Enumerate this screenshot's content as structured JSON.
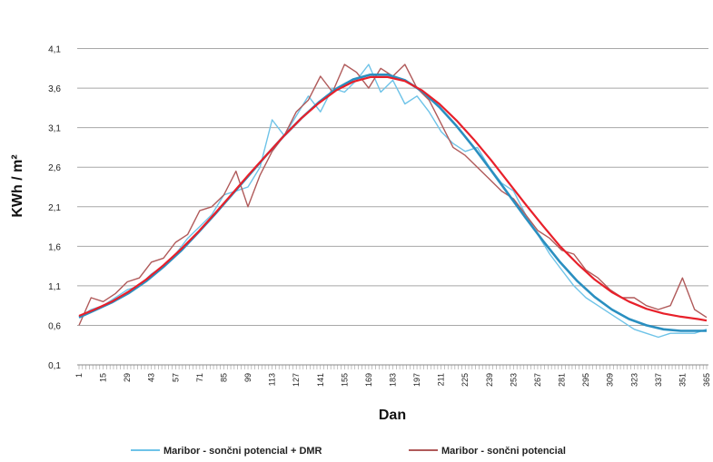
{
  "chart_data": {
    "type": "line",
    "xlabel": "Dan",
    "ylabel": "KWh / m²",
    "xlim": [
      1,
      365
    ],
    "ylim": [
      0.1,
      4.6
    ],
    "y_ticks": [
      0.1,
      0.6,
      1.1,
      1.6,
      2.1,
      2.6,
      3.1,
      3.6,
      4.1
    ],
    "y_tick_labels": [
      "0,1",
      "0,6",
      "1,1",
      "1,6",
      "2,1",
      "2,6",
      "3,1",
      "3,6",
      "4,1"
    ],
    "x_ticks": [
      1,
      15,
      29,
      43,
      57,
      71,
      85,
      99,
      113,
      127,
      141,
      155,
      169,
      183,
      197,
      211,
      225,
      239,
      253,
      267,
      281,
      295,
      309,
      323,
      337,
      351,
      365
    ],
    "grid": true,
    "legend_position": "bottom",
    "series": [
      {
        "name": "Maribor - sončni potencial + DMR",
        "color": "#6ec3e8",
        "x": [
          1,
          8,
          15,
          22,
          29,
          36,
          43,
          50,
          57,
          64,
          71,
          78,
          85,
          92,
          99,
          106,
          113,
          120,
          127,
          134,
          141,
          148,
          155,
          162,
          169,
          176,
          183,
          190,
          197,
          204,
          211,
          218,
          225,
          232,
          239,
          246,
          253,
          260,
          267,
          274,
          281,
          288,
          295,
          302,
          309,
          316,
          323,
          330,
          337,
          344,
          351,
          358,
          365
        ],
        "values": [
          0.7,
          0.8,
          0.85,
          0.95,
          1.05,
          1.1,
          1.25,
          1.35,
          1.5,
          1.7,
          1.85,
          2.0,
          2.25,
          2.3,
          2.35,
          2.6,
          3.2,
          3.0,
          3.25,
          3.5,
          3.3,
          3.6,
          3.55,
          3.7,
          3.9,
          3.55,
          3.7,
          3.4,
          3.5,
          3.3,
          3.05,
          2.9,
          2.8,
          2.85,
          2.6,
          2.4,
          2.3,
          2.0,
          1.75,
          1.5,
          1.3,
          1.1,
          0.95,
          0.85,
          0.75,
          0.65,
          0.55,
          0.5,
          0.45,
          0.5,
          0.5,
          0.5,
          0.55
        ]
      },
      {
        "name": "Maribor - sončni potencial",
        "color": "#b05a5a",
        "x": [
          1,
          8,
          15,
          22,
          29,
          36,
          43,
          50,
          57,
          64,
          71,
          78,
          85,
          92,
          99,
          106,
          113,
          120,
          127,
          134,
          141,
          148,
          155,
          162,
          169,
          176,
          183,
          190,
          197,
          204,
          211,
          218,
          225,
          232,
          239,
          246,
          253,
          260,
          267,
          274,
          281,
          288,
          295,
          302,
          309,
          316,
          323,
          330,
          337,
          344,
          351,
          358,
          365
        ],
        "values": [
          0.6,
          0.95,
          0.9,
          1.0,
          1.15,
          1.2,
          1.4,
          1.45,
          1.65,
          1.75,
          2.05,
          2.1,
          2.25,
          2.55,
          2.1,
          2.5,
          2.8,
          3.0,
          3.3,
          3.45,
          3.75,
          3.55,
          3.9,
          3.8,
          3.6,
          3.85,
          3.75,
          3.9,
          3.6,
          3.45,
          3.15,
          2.85,
          2.75,
          2.6,
          2.45,
          2.3,
          2.2,
          2.0,
          1.8,
          1.7,
          1.55,
          1.5,
          1.3,
          1.2,
          1.05,
          0.95,
          0.95,
          0.85,
          0.8,
          0.85,
          1.2,
          0.8,
          0.7
        ]
      },
      {
        "name": "",
        "color": "#2a8fc0",
        "x": [
          1,
          10,
          20,
          30,
          40,
          50,
          60,
          70,
          80,
          90,
          100,
          110,
          120,
          130,
          140,
          150,
          160,
          170,
          180,
          190,
          200,
          210,
          220,
          230,
          240,
          250,
          260,
          270,
          280,
          290,
          300,
          310,
          320,
          330,
          340,
          350,
          360,
          365
        ],
        "values": [
          0.7,
          0.79,
          0.89,
          1.01,
          1.16,
          1.34,
          1.54,
          1.77,
          2.01,
          2.26,
          2.51,
          2.76,
          3.0,
          3.22,
          3.42,
          3.59,
          3.71,
          3.77,
          3.77,
          3.7,
          3.56,
          3.36,
          3.12,
          2.85,
          2.56,
          2.26,
          1.96,
          1.67,
          1.4,
          1.16,
          0.96,
          0.8,
          0.68,
          0.6,
          0.55,
          0.53,
          0.53,
          0.53
        ]
      },
      {
        "name": "",
        "color": "#e8202a",
        "x": [
          1,
          10,
          20,
          30,
          40,
          50,
          60,
          70,
          80,
          90,
          100,
          110,
          120,
          130,
          140,
          150,
          160,
          170,
          180,
          190,
          200,
          210,
          220,
          230,
          240,
          250,
          260,
          270,
          280,
          290,
          300,
          310,
          320,
          330,
          340,
          350,
          360,
          365
        ],
        "values": [
          0.72,
          0.8,
          0.9,
          1.03,
          1.18,
          1.36,
          1.56,
          1.78,
          2.02,
          2.27,
          2.52,
          2.76,
          3.0,
          3.22,
          3.41,
          3.57,
          3.68,
          3.74,
          3.74,
          3.69,
          3.57,
          3.4,
          3.19,
          2.95,
          2.69,
          2.41,
          2.13,
          1.86,
          1.6,
          1.38,
          1.18,
          1.02,
          0.9,
          0.81,
          0.75,
          0.71,
          0.68,
          0.66
        ]
      }
    ]
  }
}
